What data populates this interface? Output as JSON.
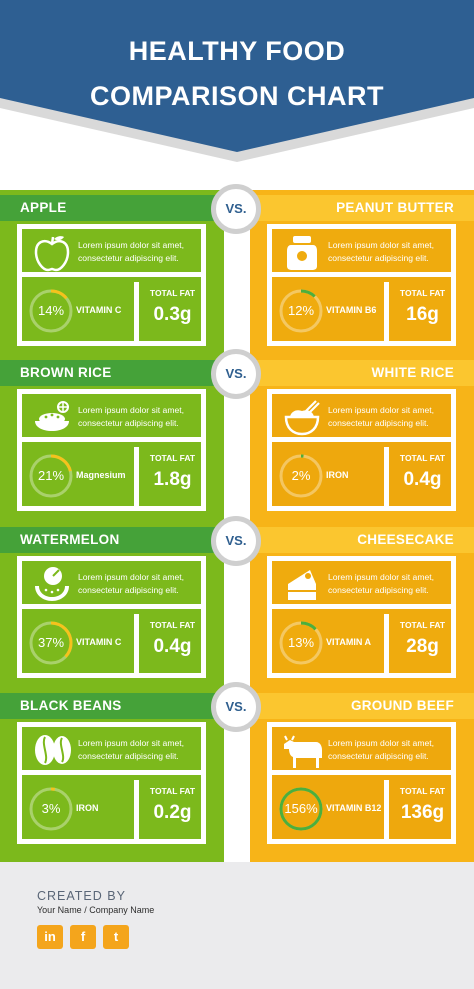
{
  "header": {
    "title_line1": "HEALTHY FOOD",
    "title_line2": "COMPARISON CHART"
  },
  "colors": {
    "header_blue": "#2e5f92",
    "left_green": "#7cb91c",
    "left_bar": "#45a239",
    "right_orange": "#f7b418",
    "right_bar": "#fbc62f",
    "ring_green": "#4caf3d",
    "ring_yellow": "#f6c21c"
  },
  "vs_label": "VS.",
  "comparisons": [
    {
      "left": {
        "name": "APPLE",
        "icon": "apple-icon",
        "desc": "Lorem ipsum dolor sit amet, consectetur adipiscing elit.",
        "percent": "14%",
        "percent_value": 14,
        "nutrient": "VITAMIN C",
        "fat_label": "TOTAL FAT",
        "fat_value": "0.3g"
      },
      "right": {
        "name": "PEANUT BUTTER",
        "icon": "jar-icon",
        "desc": "Lorem ipsum dolor sit amet, consectetur adipiscing elit.",
        "percent": "12%",
        "percent_value": 12,
        "nutrient": "VITAMIN B6",
        "fat_label": "TOTAL FAT",
        "fat_value": "16g"
      }
    },
    {
      "left": {
        "name": "BROWN RICE",
        "icon": "rice-plate-icon",
        "desc": "Lorem ipsum dolor sit amet, consectetur adipiscing elit.",
        "percent": "21%",
        "percent_value": 21,
        "nutrient": "Magnesium",
        "fat_label": "TOTAL FAT",
        "fat_value": "1.8g"
      },
      "right": {
        "name": "WHITE RICE",
        "icon": "rice-bowl-icon",
        "desc": "Lorem ipsum dolor sit amet, consectetur adipiscing elit.",
        "percent": "2%",
        "percent_value": 2,
        "nutrient": "IRON",
        "fat_label": "TOTAL FAT",
        "fat_value": "0.4g"
      }
    },
    {
      "left": {
        "name": "WATERMELON",
        "icon": "watermelon-icon",
        "desc": "Lorem ipsum dolor sit amet, consectetur adipiscing elit.",
        "percent": "37%",
        "percent_value": 37,
        "nutrient": "VITAMIN C",
        "fat_label": "TOTAL FAT",
        "fat_value": "0.4g"
      },
      "right": {
        "name": "CHEESECAKE",
        "icon": "cake-icon",
        "desc": "Lorem ipsum dolor sit amet, consectetur adipiscing elit.",
        "percent": "13%",
        "percent_value": 13,
        "nutrient": "VITAMIN A",
        "fat_label": "TOTAL FAT",
        "fat_value": "28g"
      }
    },
    {
      "left": {
        "name": "BLACK BEANS",
        "icon": "beans-icon",
        "desc": "Lorem ipsum dolor sit amet, consectetur adipiscing elit.",
        "percent": "3%",
        "percent_value": 3,
        "nutrient": "IRON",
        "fat_label": "TOTAL FAT",
        "fat_value": "0.2g"
      },
      "right": {
        "name": "GROUND BEEF",
        "icon": "cow-icon",
        "desc": "Lorem ipsum dolor sit amet, consectetur adipiscing elit.",
        "percent": "156%",
        "percent_value": 156,
        "nutrient": "VITAMIN B12",
        "fat_label": "TOTAL FAT",
        "fat_value": "136g"
      }
    }
  ],
  "footer": {
    "created_by": "CREATED BY",
    "credit": "Your Name  /  Company Name",
    "social": [
      {
        "name": "linkedin-icon",
        "glyph": "in"
      },
      {
        "name": "facebook-icon",
        "glyph": "f"
      },
      {
        "name": "twitter-icon",
        "glyph": "t"
      }
    ]
  }
}
